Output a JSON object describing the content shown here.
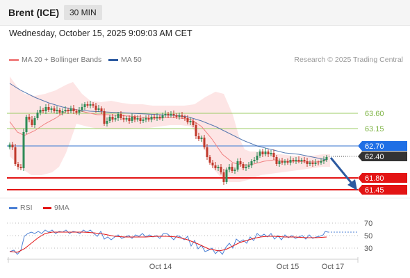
{
  "header": {
    "symbol": "Brent (ICE)",
    "interval": "30 MIN",
    "datetime": "Wednesday, October 15, 2025 9:09:03 AM CET"
  },
  "legend": {
    "ma20_label": "MA 20 + Bollinger Bands",
    "ma20_color": "#f08080",
    "ma50_label": "MA 50",
    "ma50_color": "#2c5aa0"
  },
  "credit": "Research © 2025 Trading Central",
  "levels": {
    "resistance_2": "63.60",
    "resistance_1": "63.15",
    "pivot": "62.70",
    "last_price": "62.40",
    "support_1": "61.80",
    "support_2": "61.45"
  },
  "colors": {
    "resistance": "#8cc63f",
    "pivot": "#1f6fe5",
    "support": "#e31414",
    "last_price_bg": "#333333",
    "candle_up": "#2e8b57",
    "candle_down": "#c0392b",
    "band": "#fde0e0"
  },
  "rsi_panel": {
    "rsi_label": "RSI",
    "rsi_color": "#4a7fd4",
    "ma9_label": "9MA",
    "ma9_color": "#e31414",
    "levels": [
      "70",
      "50",
      "30"
    ]
  },
  "xaxis": {
    "labels": [
      "Oct 14",
      "Oct 15",
      "Oct 17"
    ]
  }
}
